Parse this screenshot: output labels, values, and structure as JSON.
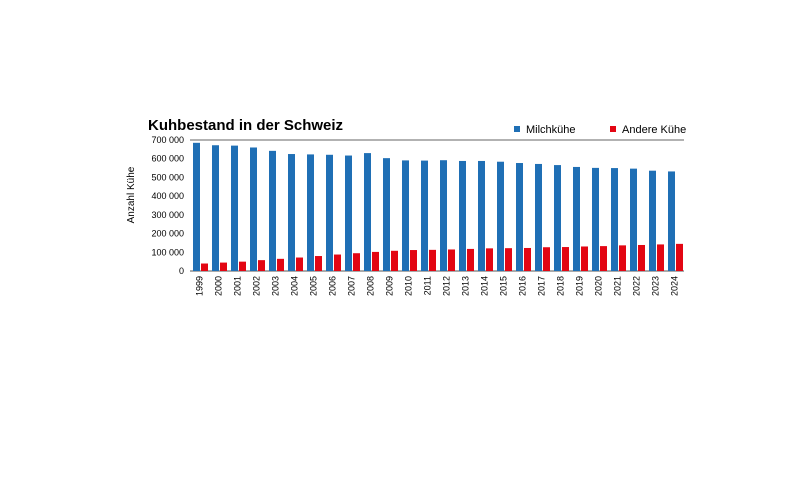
{
  "chart_data": {
    "type": "bar",
    "title": "Kuhbestand in der Schweiz",
    "xlabel": "",
    "ylabel": "Anzahl Kühe",
    "ylim": [
      0,
      700000
    ],
    "yticks": [
      0,
      100000,
      200000,
      300000,
      400000,
      500000,
      600000,
      700000
    ],
    "ytick_labels": [
      "0",
      "100 000",
      "200 000",
      "300 000",
      "400 000",
      "500 000",
      "600 000",
      "700 000"
    ],
    "grid": false,
    "legend_position": "top-right",
    "categories": [
      "1999",
      "2000",
      "2001",
      "2002",
      "2003",
      "2004",
      "2005",
      "2006",
      "2007",
      "2008",
      "2009",
      "2010",
      "2011",
      "2012",
      "2013",
      "2014",
      "2015",
      "2016",
      "2017",
      "2018",
      "2019",
      "2020",
      "2021",
      "2022",
      "2023",
      "2024"
    ],
    "series": [
      {
        "name": "Milchkühe",
        "color": "#1f6fb5",
        "values": [
          685000,
          672000,
          670000,
          660000,
          642000,
          625000,
          623000,
          621000,
          617000,
          630000,
          603000,
          591000,
          590000,
          592000,
          588000,
          588000,
          584000,
          577000,
          572000,
          566000,
          556000,
          551000,
          550000,
          547000,
          536000,
          532000
        ]
      },
      {
        "name": "Andere Kühe",
        "color": "#e30613",
        "values": [
          40000,
          45000,
          50000,
          58000,
          65000,
          72000,
          80000,
          88000,
          95000,
          102000,
          108000,
          112000,
          113000,
          115000,
          118000,
          121000,
          122000,
          123000,
          127000,
          128000,
          131000,
          133000,
          137000,
          139000,
          142000,
          145000
        ]
      }
    ]
  }
}
